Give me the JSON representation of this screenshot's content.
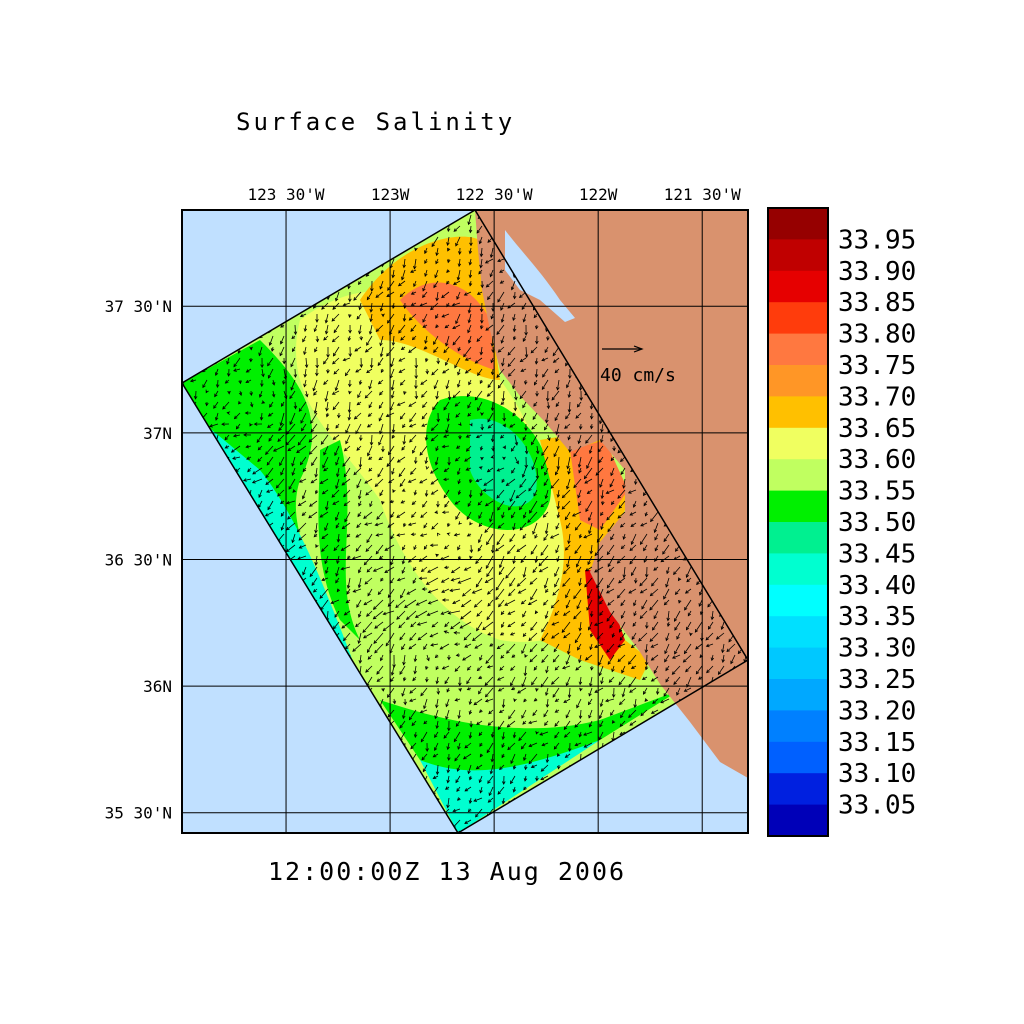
{
  "title": "Surface Salinity",
  "time_label": "12:00:00Z  13 Aug 2006",
  "vector_scale_label": "40 cm/s",
  "colors": {
    "ocean": "#c0e0ff",
    "land": "#d9926e",
    "frame": "#000000"
  },
  "map": {
    "lon_range": [
      -124.0,
      -121.28
    ],
    "lat_range": [
      35.42,
      37.88
    ],
    "lon_ticks": [
      {
        "value": -123.5,
        "label": "123 30'W"
      },
      {
        "value": -123.0,
        "label": "123W"
      },
      {
        "value": -122.5,
        "label": "122 30'W"
      },
      {
        "value": -122.0,
        "label": "122W"
      },
      {
        "value": -121.5,
        "label": "121 30'W"
      }
    ],
    "lat_ticks": [
      {
        "value": 37.5,
        "label": "37 30'N"
      },
      {
        "value": 37.0,
        "label": "37N"
      },
      {
        "value": 36.5,
        "label": "36 30'N"
      },
      {
        "value": 36.0,
        "label": "36N"
      },
      {
        "value": 35.5,
        "label": "35 30'N"
      }
    ],
    "grid": true
  },
  "colorbar": {
    "labels": [
      "33.95",
      "33.90",
      "33.85",
      "33.80",
      "33.75",
      "33.70",
      "33.65",
      "33.60",
      "33.55",
      "33.50",
      "33.45",
      "33.40",
      "33.35",
      "33.30",
      "33.25",
      "33.20",
      "33.15",
      "33.10",
      "33.05"
    ],
    "band_colors": [
      "#960000",
      "#c00000",
      "#e60000",
      "#ff3c0c",
      "#ff7840",
      "#ff9626",
      "#ffc000",
      "#f0ff60",
      "#c0ff60",
      "#00f000",
      "#00f090",
      "#00ffd0",
      "#00ffff",
      "#00e0ff",
      "#00c8ff",
      "#00a8ff",
      "#0080ff",
      "#0060ff",
      "#0020e0",
      "#0000b8"
    ]
  }
}
